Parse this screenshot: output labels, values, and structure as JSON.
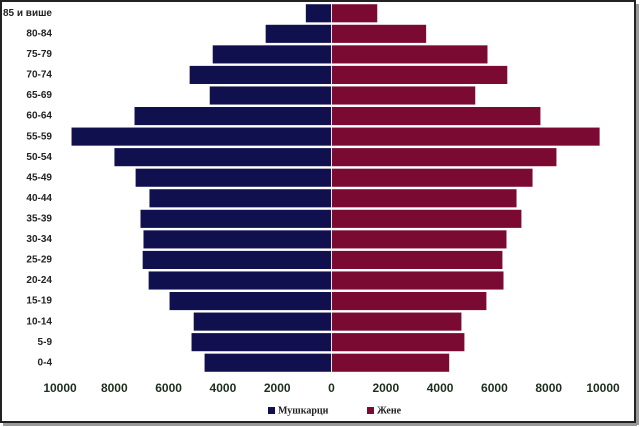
{
  "chart_data": {
    "type": "population-pyramid",
    "categories": [
      "85 и више",
      "80-84",
      "75-79",
      "70-74",
      "65-69",
      "60-64",
      "55-59",
      "50-54",
      "45-49",
      "40-44",
      "35-39",
      "30-34",
      "25-29",
      "20-24",
      "15-19",
      "10-14",
      "5-9",
      "0-4"
    ],
    "series": [
      {
        "name": "Мушкарци",
        "color": "#10104f",
        "side": "left",
        "values": [
          960,
          2440,
          4390,
          5240,
          4500,
          7270,
          9590,
          8010,
          7230,
          6720,
          7050,
          6940,
          6970,
          6750,
          5980,
          5090,
          5170,
          4690
        ]
      },
      {
        "name": "Жене",
        "color": "#7a0a31",
        "side": "right",
        "values": [
          1700,
          3500,
          5760,
          6490,
          5310,
          7710,
          9890,
          8300,
          7420,
          6830,
          7010,
          6460,
          6310,
          6350,
          5720,
          4800,
          4910,
          4350
        ]
      }
    ],
    "xlim": [
      -10000,
      10000
    ],
    "xticks": [
      {
        "value": -10000,
        "label": "10000"
      },
      {
        "value": -8000,
        "label": "8000"
      },
      {
        "value": -6000,
        "label": "6000"
      },
      {
        "value": -4000,
        "label": "4000"
      },
      {
        "value": -2000,
        "label": "2000"
      },
      0,
      2000,
      4000,
      6000,
      8000,
      10000
    ],
    "legend": "bottom"
  }
}
